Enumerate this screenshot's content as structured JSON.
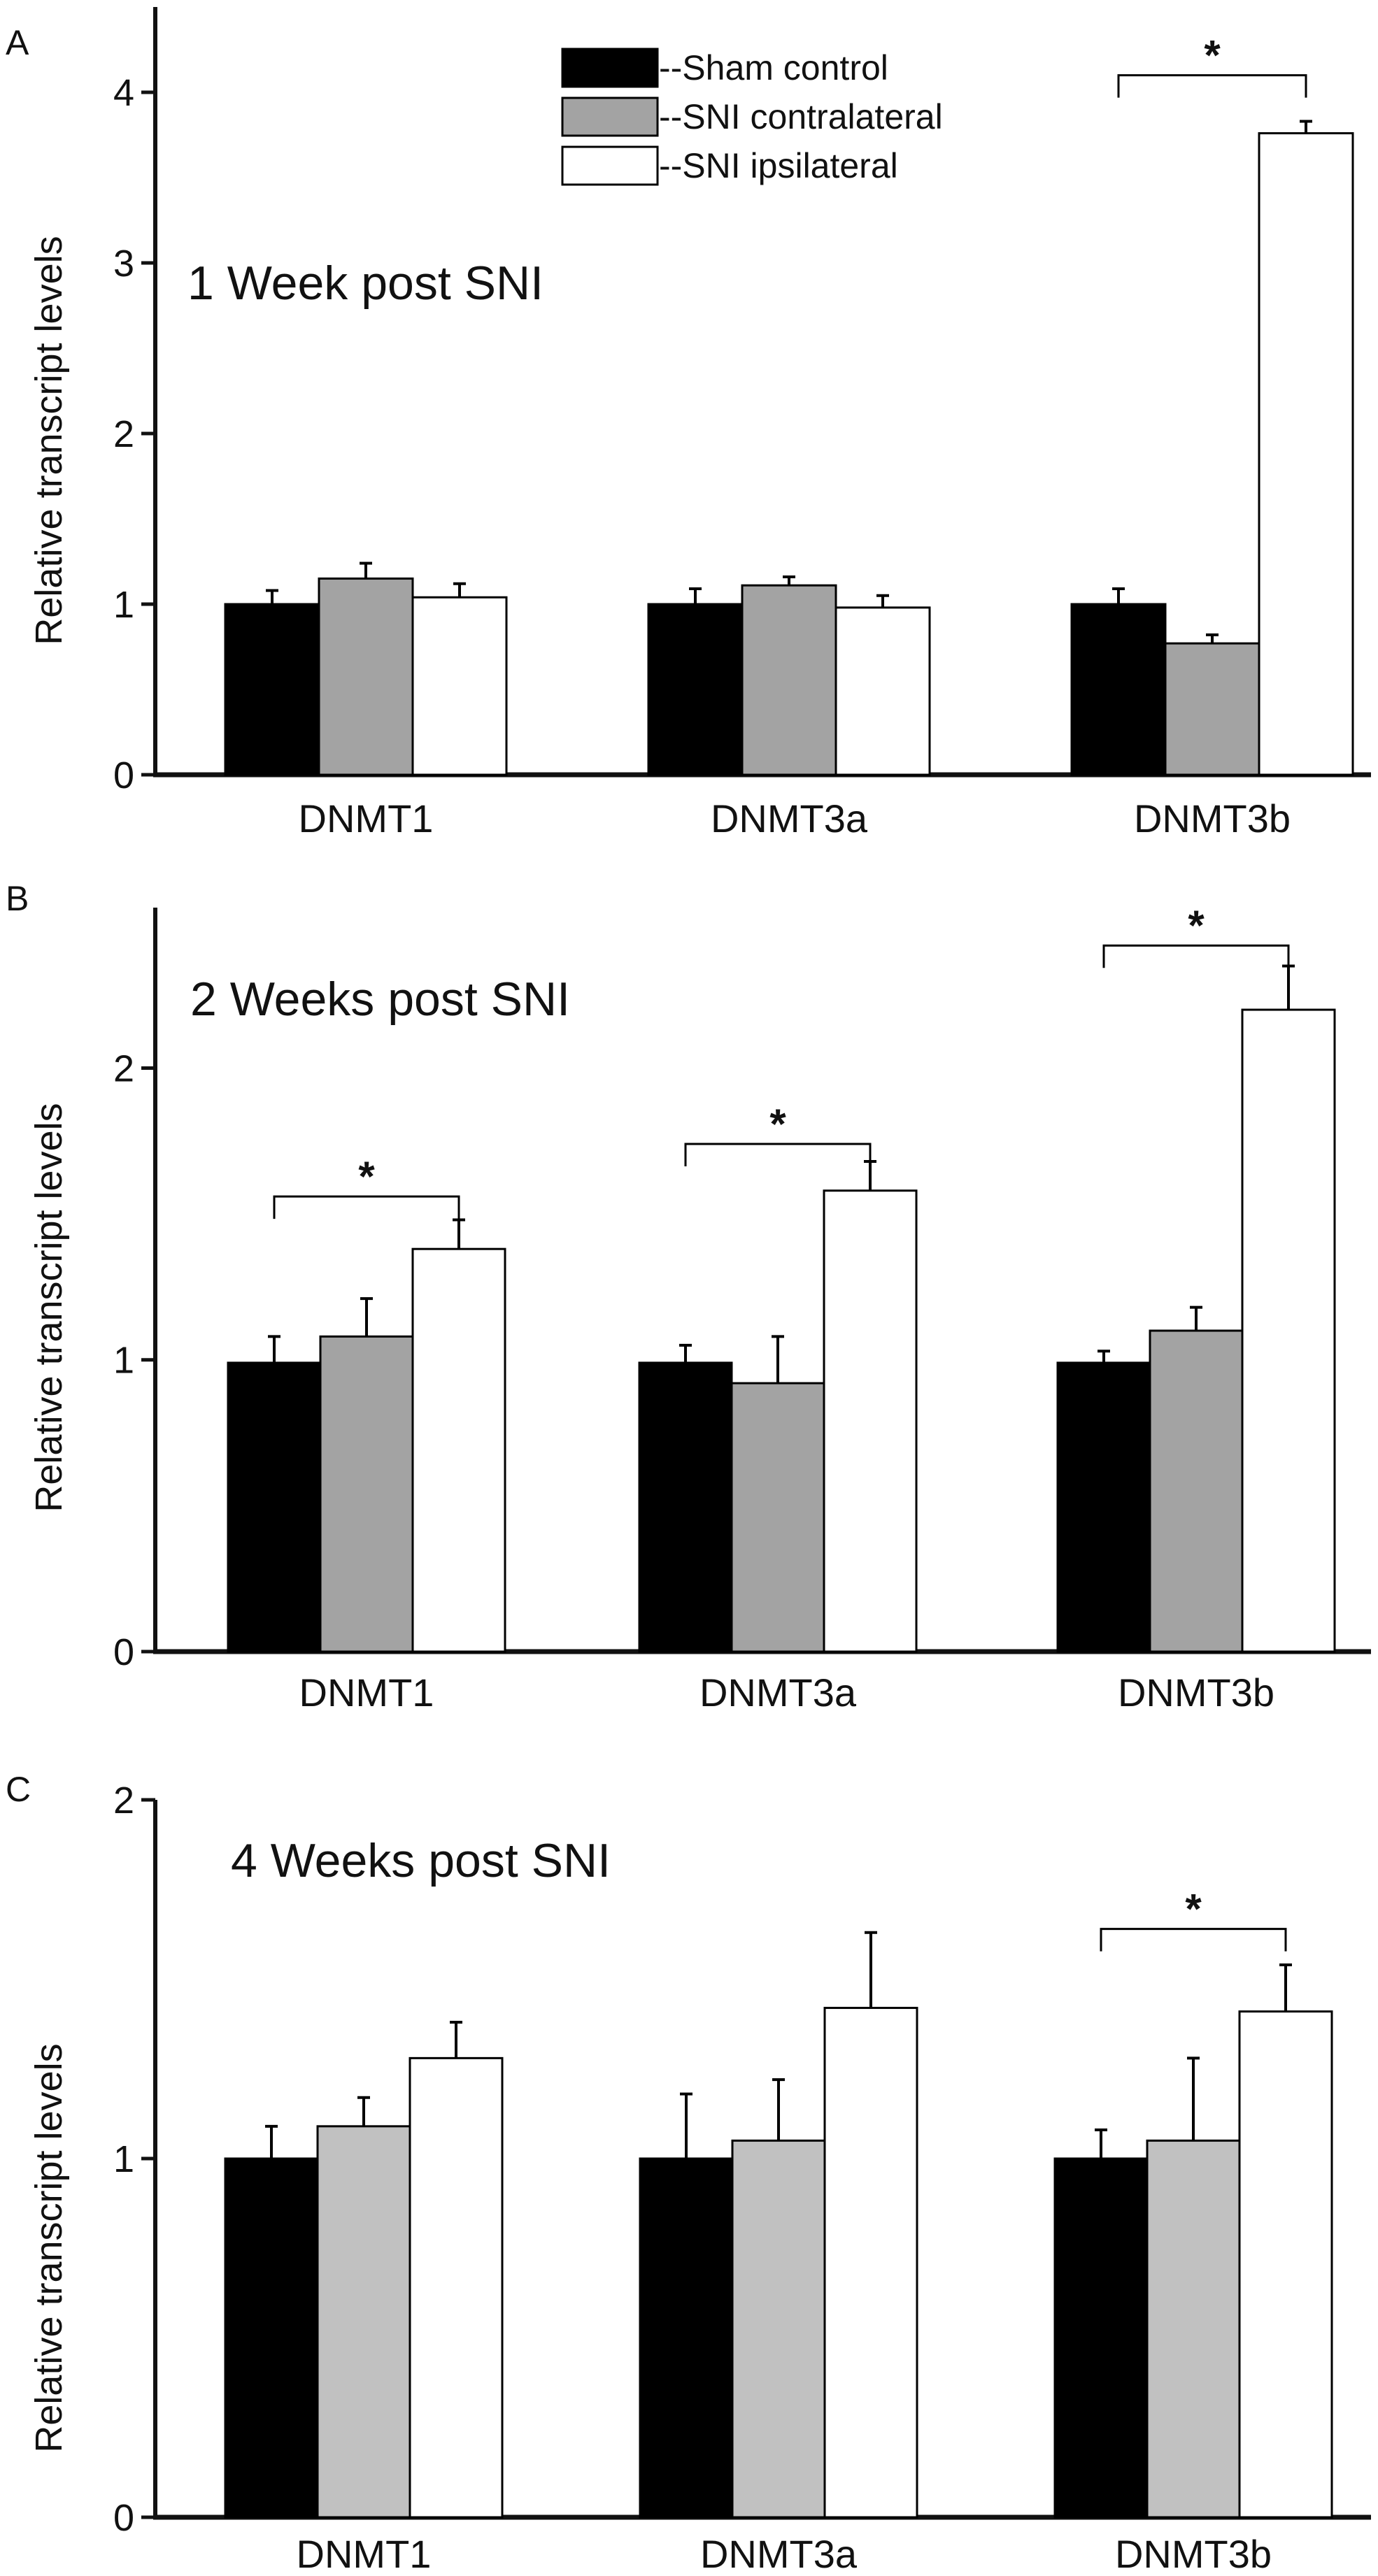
{
  "colors": {
    "sham": "#000000",
    "contralateral_a": "#a3a3a3",
    "contralateral_b": "#a3a3a3",
    "contralateral_c": "#c1c1c1",
    "ipsilateral": "#ffffff",
    "axis": "#111111"
  },
  "legend": {
    "items": [
      {
        "label": "--Sham control",
        "color": "#000000"
      },
      {
        "label": "--SNI contralateral",
        "color": "#a3a3a3"
      },
      {
        "label": "--SNI ipsilateral",
        "color": "#ffffff"
      }
    ]
  },
  "chart_data": [
    {
      "type": "bar",
      "panel_label": "A",
      "title": "1 Week post SNI",
      "ylabel": "Relative transcript levels",
      "ylim": [
        0,
        4.5
      ],
      "yticks": [
        "0",
        "1",
        "2",
        "3",
        "4"
      ],
      "ytick_values": [
        0,
        1,
        2,
        3,
        4
      ],
      "categories": [
        "DNMT1",
        "DNMT3a",
        "DNMT3b"
      ],
      "series": [
        {
          "name": "Sham control",
          "values": [
            1.0,
            1.0,
            1.0
          ],
          "errors": [
            0.08,
            0.09,
            0.09
          ]
        },
        {
          "name": "SNI contralateral",
          "values": [
            1.15,
            1.11,
            0.77
          ],
          "errors": [
            0.09,
            0.05,
            0.05
          ]
        },
        {
          "name": "SNI ipsilateral",
          "values": [
            1.04,
            0.98,
            3.76
          ],
          "errors": [
            0.08,
            0.07,
            0.07
          ]
        }
      ],
      "significance": [
        {
          "category": "DNMT3b",
          "label": "*",
          "bracket_y": 4.1
        }
      ]
    },
    {
      "type": "bar",
      "panel_label": "B",
      "title": "2 Weeks post SNI",
      "ylabel": "Relative transcript levels",
      "ylim": [
        0,
        2.55
      ],
      "yticks": [
        "0",
        "1",
        "2"
      ],
      "ytick_values": [
        0,
        1,
        2
      ],
      "categories": [
        "DNMT1",
        "DNMT3a",
        "DNMT3b"
      ],
      "series": [
        {
          "name": "Sham control",
          "values": [
            0.99,
            0.99,
            0.99
          ],
          "errors": [
            0.09,
            0.06,
            0.04
          ]
        },
        {
          "name": "SNI contralateral",
          "values": [
            1.08,
            0.92,
            1.1
          ],
          "errors": [
            0.13,
            0.16,
            0.08
          ]
        },
        {
          "name": "SNI ipsilateral",
          "values": [
            1.38,
            1.58,
            2.2
          ],
          "errors": [
            0.1,
            0.1,
            0.15
          ]
        }
      ],
      "significance": [
        {
          "category": "DNMT1",
          "label": "*",
          "bracket_y": 1.56
        },
        {
          "category": "DNMT3a",
          "label": "*",
          "bracket_y": 1.74
        },
        {
          "category": "DNMT3b",
          "label": "*",
          "bracket_y": 2.42
        }
      ]
    },
    {
      "type": "bar",
      "panel_label": "C",
      "title": "4 Weeks post SNI",
      "ylabel": "Relative transcript levels",
      "ylim": [
        0,
        2
      ],
      "yticks": [
        "0",
        "1",
        "2"
      ],
      "ytick_values": [
        0,
        1,
        2
      ],
      "categories": [
        "DNMT1",
        "DNMT3a",
        "DNMT3b"
      ],
      "series": [
        {
          "name": "Sham control",
          "values": [
            1.0,
            1.0,
            1.0
          ],
          "errors": [
            0.09,
            0.18,
            0.08
          ]
        },
        {
          "name": "SNI contralateral",
          "values": [
            1.09,
            1.05,
            1.05
          ],
          "errors": [
            0.08,
            0.17,
            0.23
          ]
        },
        {
          "name": "SNI ipsilateral",
          "values": [
            1.28,
            1.42,
            1.41
          ],
          "errors": [
            0.1,
            0.21,
            0.13
          ]
        }
      ],
      "significance": [
        {
          "category": "DNMT3b",
          "label": "*",
          "bracket_y": 1.64
        }
      ]
    }
  ]
}
